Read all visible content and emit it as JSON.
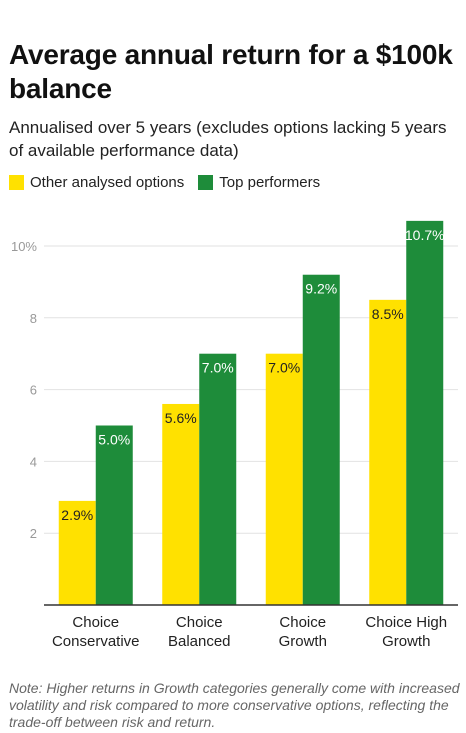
{
  "title": "Average annual return for a $100k balance",
  "subtitle": "Annualised over 5 years (excludes options lacking 5 years of available performance data)",
  "note": "Note: Higher returns in Growth categories generally come with increased volatility and risk compared to more conservative options, reflecting the trade-off between risk and return.",
  "colors": {
    "other": "#FFE100",
    "top": "#1E8C3A",
    "grid": "#e2e2e2",
    "axis": "#333333"
  },
  "chart_data": {
    "type": "bar",
    "categories": [
      [
        "Choice",
        "Conservative"
      ],
      [
        "Choice",
        "Balanced"
      ],
      [
        "Choice",
        "Growth"
      ],
      [
        "Choice High",
        "Growth"
      ]
    ],
    "series": [
      {
        "name": "Other analysed options",
        "values": [
          2.9,
          5.6,
          7.0,
          8.5
        ],
        "labels": [
          "2.9%",
          "5.6%",
          "7.0%",
          "8.5%"
        ]
      },
      {
        "name": "Top performers",
        "values": [
          5.0,
          7.0,
          9.2,
          10.7
        ],
        "labels": [
          "5.0%",
          "7.0%",
          "9.2%",
          "10.7%"
        ]
      }
    ],
    "yticks": [
      {
        "value": 2,
        "label": "2"
      },
      {
        "value": 4,
        "label": "4"
      },
      {
        "value": 6,
        "label": "6"
      },
      {
        "value": 8,
        "label": "8"
      },
      {
        "value": 10,
        "label": "10%"
      }
    ],
    "ylim": [
      0,
      10.8
    ],
    "legend": "top-left",
    "grid": true
  }
}
